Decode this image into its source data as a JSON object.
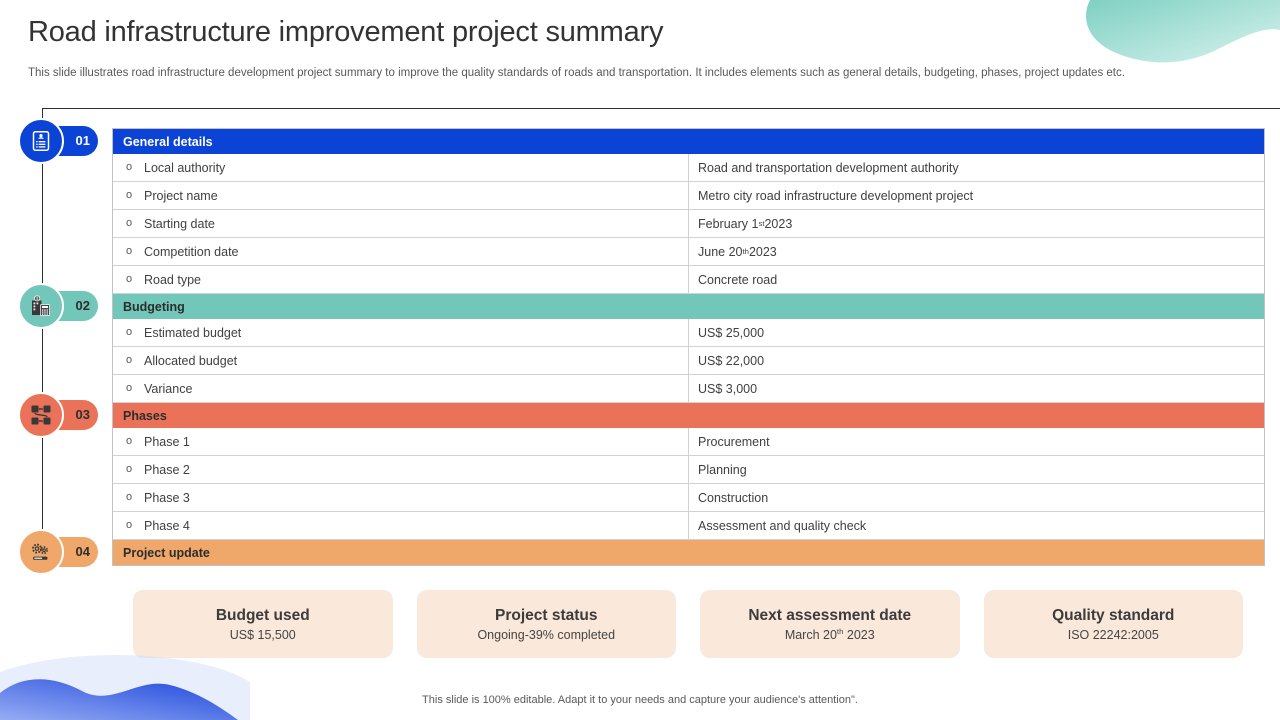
{
  "slide": {
    "title": "Road infrastructure improvement project summary",
    "subtitle": "This slide illustrates road infrastructure development project summary to improve the quality standards of roads and transportation. It includes elements such as general details, budgeting, phases, project updates etc.",
    "footer_note": "This slide is 100% editable. Adapt it to your needs and capture your audience's attention\"."
  },
  "colors": {
    "blue": "#0b43d7",
    "teal": "#72c6ba",
    "salmon": "#e97258",
    "orange": "#efa76a",
    "card_bg": "#fae8da",
    "dark_text": "#2d2d2d",
    "white_text": "#ffffff"
  },
  "sections": [
    {
      "number": "01",
      "title": "General details",
      "color_key": "blue",
      "header_text_color": "#ffffff",
      "number_color": "#ffffff",
      "icon": "document-icon",
      "rows": [
        {
          "label": "Local authority",
          "value": "Road and transportation development authority"
        },
        {
          "label": "Project name",
          "value": "Metro city road infrastructure development project"
        },
        {
          "label": "Starting date",
          "value": "February 1st 2023"
        },
        {
          "label": "Competition date",
          "value": "June 20th 2023"
        },
        {
          "label": "Road type",
          "value": "Concrete road"
        }
      ]
    },
    {
      "number": "02",
      "title": "Budgeting",
      "color_key": "teal",
      "header_text_color": "#2d2d2d",
      "number_color": "#2d2d2d",
      "icon": "budget-icon",
      "rows": [
        {
          "label": "Estimated budget",
          "value": "US$ 25,000"
        },
        {
          "label": "Allocated budget",
          "value": "US$ 22,000"
        },
        {
          "label": "Variance",
          "value": "US$ 3,000"
        }
      ]
    },
    {
      "number": "03",
      "title": "Phases",
      "color_key": "salmon",
      "header_text_color": "#2d2d2d",
      "number_color": "#2d2d2d",
      "icon": "phases-icon",
      "rows": [
        {
          "label": "Phase 1",
          "value": "Procurement"
        },
        {
          "label": "Phase 2",
          "value": "Planning"
        },
        {
          "label": "Phase 3",
          "value": "Construction"
        },
        {
          "label": "Phase 4",
          "value": "Assessment and quality check"
        }
      ]
    },
    {
      "number": "04",
      "title": "Project update",
      "color_key": "orange",
      "header_text_color": "#2d2d2d",
      "number_color": "#2d2d2d",
      "icon": "update-icon",
      "rows": []
    }
  ],
  "summary_cards": [
    {
      "title": "Budget used",
      "value": "US$ 15,500"
    },
    {
      "title": "Project status",
      "value": "Ongoing-39% completed"
    },
    {
      "title": "Next assessment date",
      "value": "March 20th 2023"
    },
    {
      "title": "Quality standard",
      "value": "ISO 22242:2005"
    }
  ]
}
